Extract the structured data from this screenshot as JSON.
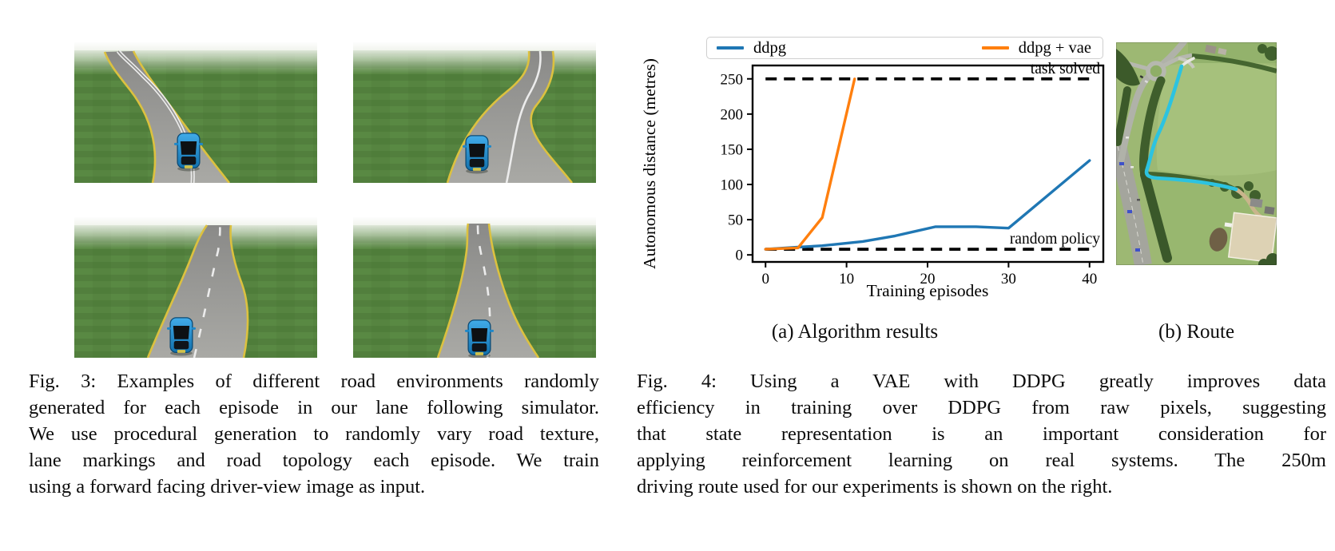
{
  "figure3": {
    "caption_lines": [
      "Fig. 3: Examples of different road environments randomly",
      "generated for each episode in our lane following simulator.",
      "We use procedural generation to randomly vary road texture,",
      "lane markings and road topology each episode. We train",
      "using a forward facing driver-view image as input."
    ],
    "images": [
      {
        "alt": "Simulated road curving left with double solid white centre line, yellow edges and a blue car"
      },
      {
        "alt": "Simulated road curving right with single solid white centre line, yellow edges and a blue car"
      },
      {
        "alt": "Simulated road with dashed white centre line winding to the horizon and a blue car"
      },
      {
        "alt": "Simulated near-straight road with dashed white centre line and a blue car"
      }
    ]
  },
  "figure4": {
    "subcaption_a": "(a) Algorithm results",
    "subcaption_b": "(b) Route",
    "route_image_alt": "Aerial photograph of the 250m driving route highlighted in cyan beside a road, across fields",
    "caption_lines": [
      "Fig. 4: Using a VAE with DDPG greatly improves data",
      "efficiency in training over DDPG from raw pixels, suggesting",
      "that state representation is an important consideration for",
      "applying reinforcement learning on real systems. The 250m",
      "driving route used for our experiments is shown on the right."
    ]
  },
  "chart_data": {
    "type": "line",
    "title": "",
    "xlabel": "Training episodes",
    "ylabel": "Autonomous distance (metres)",
    "xticks": [
      0,
      10,
      20,
      30,
      40
    ],
    "yticks": [
      0,
      50,
      100,
      150,
      200,
      250
    ],
    "xlim": [
      -1.6,
      41.7
    ],
    "ylim": [
      -10,
      269
    ],
    "grid": false,
    "legend_position": "top",
    "series": [
      {
        "name": "ddpg",
        "color": "#1f77b4",
        "x": [
          0,
          4,
          7,
          12,
          16,
          21,
          26,
          30,
          40
        ],
        "y": [
          8,
          11,
          13,
          19,
          27,
          40,
          40,
          38,
          134
        ]
      },
      {
        "name": "ddpg + vae",
        "color": "#ff7f0e",
        "x": [
          0,
          4,
          7,
          11
        ],
        "y": [
          8,
          10,
          53,
          250
        ]
      }
    ],
    "reference_lines": [
      {
        "label": "task solved",
        "y": 250,
        "x_range": [
          0,
          40
        ],
        "color": "#000000",
        "style": "dashed"
      },
      {
        "label": "random policy",
        "y": 8,
        "x_range": [
          0,
          40
        ],
        "color": "#000000",
        "style": "dashed"
      }
    ]
  }
}
